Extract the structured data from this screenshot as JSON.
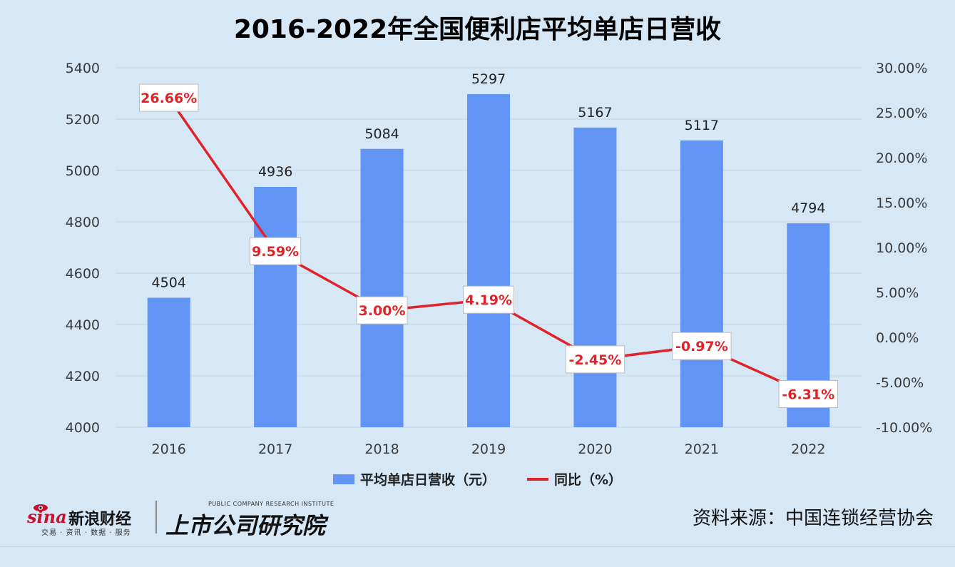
{
  "title": "2016-2022年全国便利店平均单店日营收",
  "chart_data": {
    "type": "bar+line",
    "categories": [
      "2016",
      "2017",
      "2018",
      "2019",
      "2020",
      "2021",
      "2022"
    ],
    "series": [
      {
        "name": "平均单店日营收（元）",
        "type": "bar",
        "axis": "left",
        "values": [
          4504,
          4936,
          5084,
          5297,
          5167,
          5117,
          4794
        ],
        "color": "#6194f5"
      },
      {
        "name": "同比（%）",
        "type": "line",
        "axis": "right",
        "values": [
          26.66,
          9.59,
          3.0,
          4.19,
          -2.45,
          -0.97,
          -6.31
        ],
        "labels": [
          "26.66%",
          "9.59%",
          "3.00%",
          "4.19%",
          "-2.45%",
          "-0.97%",
          "-6.31%"
        ],
        "color": "#e0232a"
      }
    ],
    "left_axis": {
      "min": 4000,
      "max": 5400,
      "ticks": [
        "4000",
        "4200",
        "4400",
        "4600",
        "4800",
        "5000",
        "5200",
        "5400"
      ]
    },
    "right_axis": {
      "min": -10,
      "max": 30,
      "ticks": [
        "-10.00%",
        "-5.00%",
        "0.00%",
        "5.00%",
        "10.00%",
        "15.00%",
        "20.00%",
        "25.00%",
        "30.00%"
      ]
    },
    "grid": true,
    "legend_position": "bottom"
  },
  "legend": {
    "bar_label": "平均单店日营收（元）",
    "line_label": "同比（%）"
  },
  "footer": {
    "sina_word": "sina",
    "sina_cn": "新浪财经",
    "sina_sub": "交易 · 资讯 · 数据 · 服务",
    "inst_en": "PUBLIC COMPANY RESEARCH INSTITUTE",
    "inst_cn": "上市公司研究院",
    "source": "资料来源：中国连锁经营协会"
  }
}
